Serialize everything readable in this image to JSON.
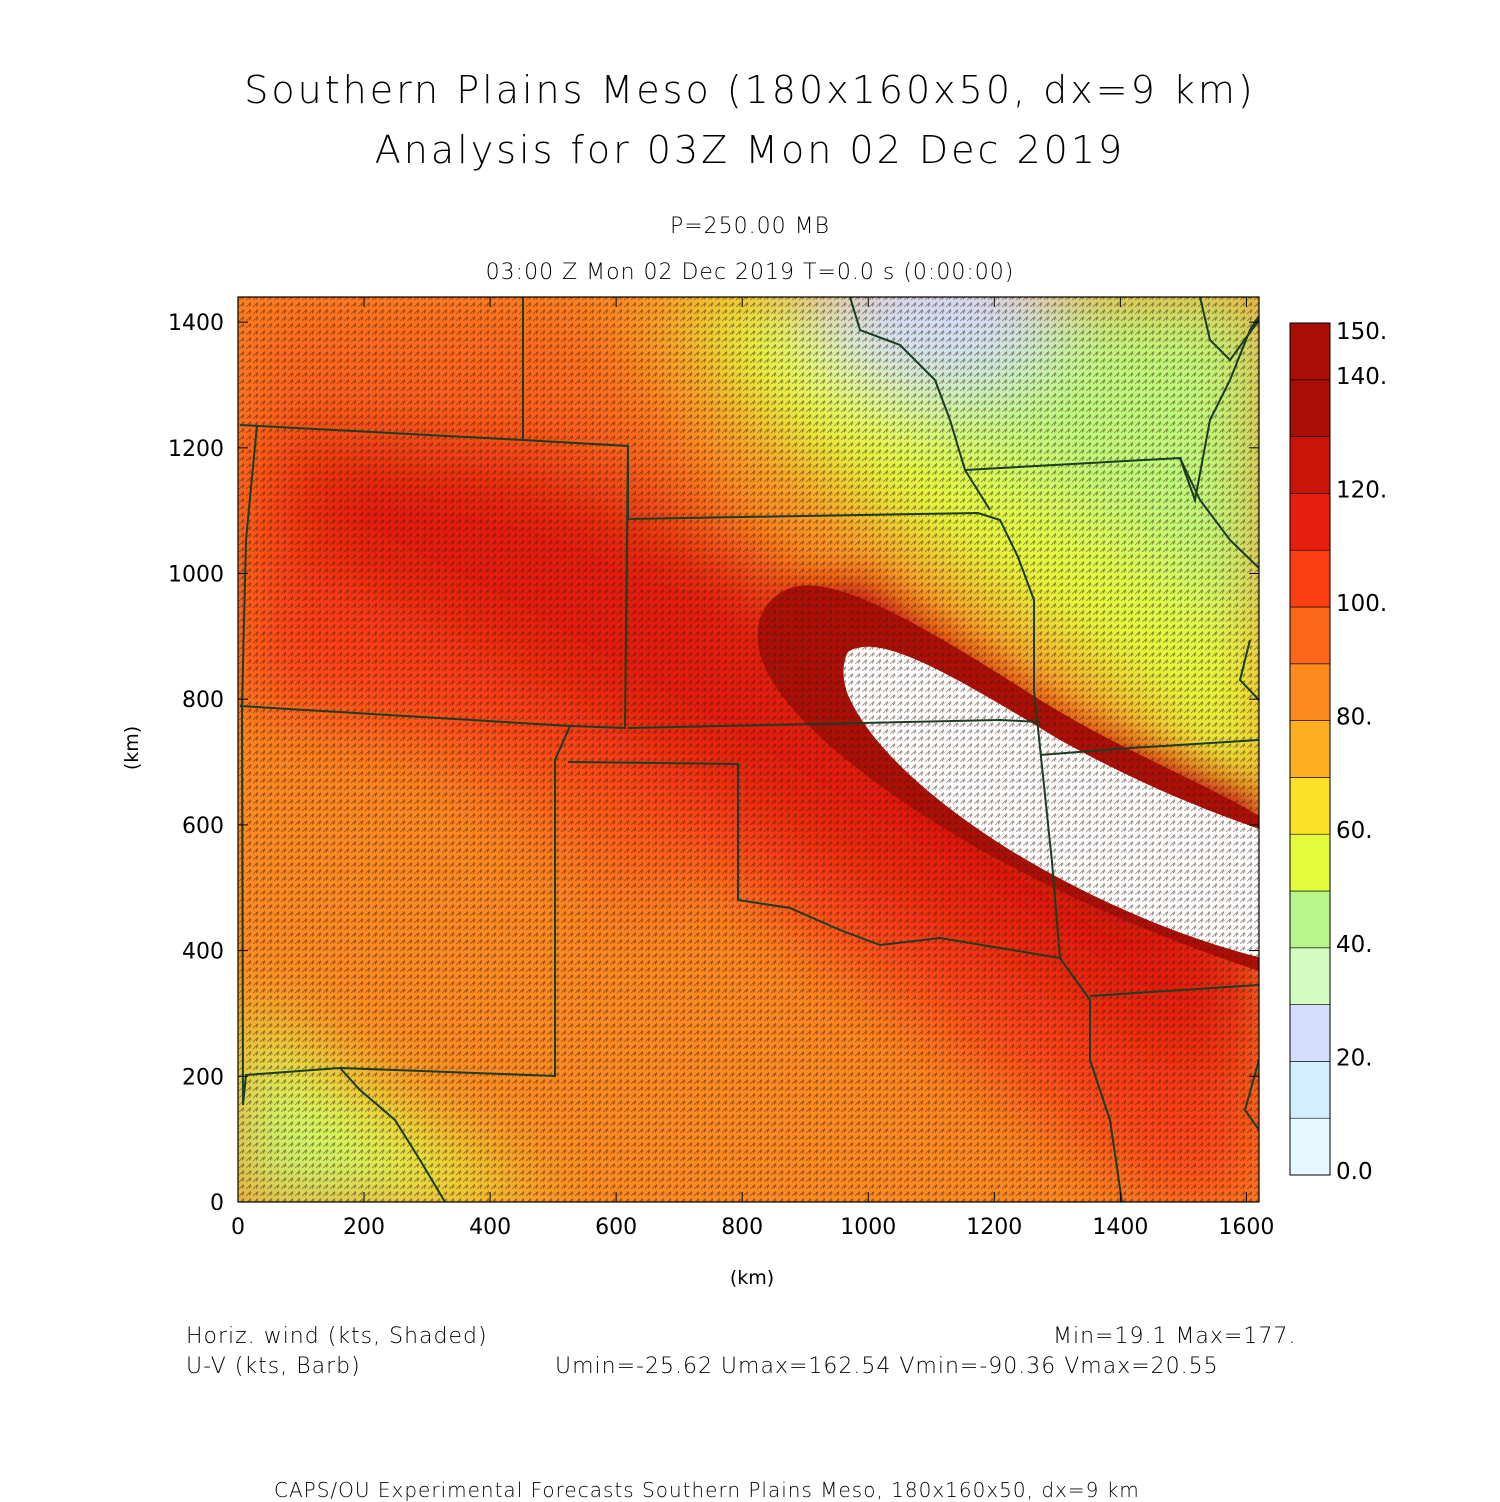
{
  "title_line1": "Southern Plains Meso (180x160x50, dx=9 km)",
  "title_line2": "Analysis for 03Z Mon 02 Dec 2019",
  "level_label": "P=250.00 MB",
  "time_label": "03:00 Z Mon 02 Dec 2019    T=0.0 s (0:00:00)",
  "x_axis": {
    "label": "(km)",
    "ticks": [
      "0",
      "200",
      "400",
      "600",
      "800",
      "1000",
      "1200",
      "1400",
      "1600"
    ]
  },
  "y_axis": {
    "label": "(km)",
    "ticks": [
      "0",
      "200",
      "400",
      "600",
      "800",
      "1000",
      "1200",
      "1400"
    ]
  },
  "colorbar": {
    "labels": [
      "0.0",
      "20.",
      "40.",
      "60.",
      "80.",
      "100.",
      "120.",
      "140.",
      "150."
    ],
    "colors": [
      "#e6f7ff",
      "#d2eeff",
      "#d4ddfa",
      "#d4fcc0",
      "#b8f68a",
      "#e2fb3c",
      "#fde028",
      "#fcb020",
      "#fc8a1c",
      "#fc661a",
      "#fc3f12",
      "#e61e0e",
      "#c81508",
      "#a80e05"
    ]
  },
  "legend": {
    "shaded": "Horiz. wind (kts, Shaded)",
    "barb": "U-V (kts, Barb)",
    "minmax": "Min=19.1 Max=177.",
    "uv_minmax": "Umin=-25.62 Umax=162.54 Vmin=-90.36 Vmax=20.55"
  },
  "footer": "CAPS/OU Experimental Forecasts  Southern Plains Meso, 180x160x50, dx=9 km",
  "map": {
    "domain_km": {
      "x": [
        0,
        1620
      ],
      "y": [
        0,
        1440
      ]
    },
    "field": "horizontal wind speed (kts)",
    "jet_core": "wind speed above 150 kts (white, unshaded)",
    "features": [
      "state boundaries",
      "wind barbs"
    ]
  }
}
